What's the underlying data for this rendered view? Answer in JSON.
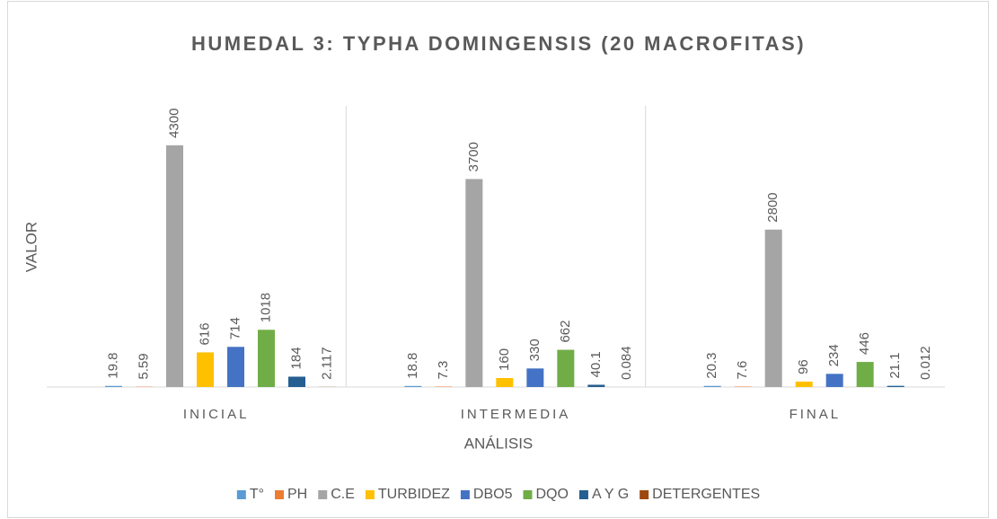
{
  "chart_data": {
    "type": "bar",
    "title": "HUMEDAL 3: TYPHA DOMINGENSIS (20 MACROFITAS)",
    "x_label": "ANÁLISIS",
    "y_label": "VALOR",
    "categories": [
      "INICIAL",
      "INTERMEDIA",
      "FINAL"
    ],
    "series": [
      {
        "name": "T°",
        "color": "#5b9bd5",
        "values": [
          19.8,
          18.8,
          20.3
        ]
      },
      {
        "name": "PH",
        "color": "#ed7d31",
        "values": [
          5.59,
          7.3,
          7.6
        ]
      },
      {
        "name": "C.E",
        "color": "#a5a5a5",
        "values": [
          4300,
          3700,
          2800
        ]
      },
      {
        "name": "TURBIDEZ",
        "color": "#ffc000",
        "values": [
          616,
          160,
          96
        ]
      },
      {
        "name": "DBO5",
        "color": "#4472c4",
        "values": [
          714,
          330,
          234
        ]
      },
      {
        "name": "DQO",
        "color": "#70ad47",
        "values": [
          1018,
          662,
          446
        ]
      },
      {
        "name": "A Y G",
        "color": "#255e91",
        "values": [
          184,
          40.1,
          21.1
        ]
      },
      {
        "name": "DETERGENTES",
        "color": "#9e480e",
        "values": [
          2.117,
          0.084,
          0.012
        ]
      }
    ],
    "ylim": [
      0,
      5000
    ],
    "legend": "bottom"
  }
}
